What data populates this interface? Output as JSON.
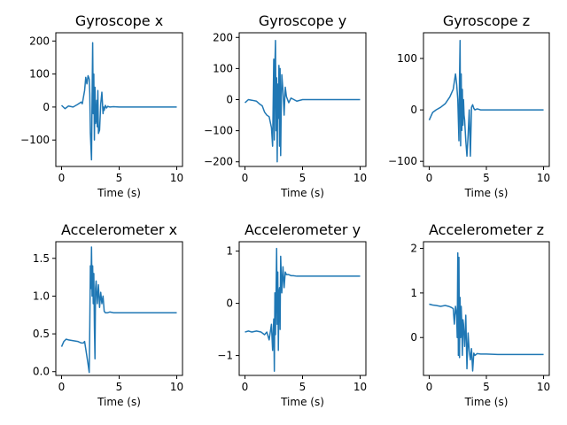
{
  "figure": {
    "background": "#ffffff",
    "line_color": "#1f77b4"
  },
  "chart_data": [
    {
      "type": "line",
      "title": "Gyroscope x",
      "xlabel": "Time (s)",
      "ylabel": "",
      "xlim": [
        -0.5,
        10.5
      ],
      "ylim": [
        -180,
        225
      ],
      "xticks": [
        0,
        5,
        10
      ],
      "yticks": [
        -100,
        0,
        100,
        200
      ],
      "series": [
        {
          "x": [
            0,
            0.3,
            0.6,
            1.0,
            1.4,
            1.7,
            1.8,
            2.0,
            2.1,
            2.2,
            2.3,
            2.4,
            2.45,
            2.5,
            2.6,
            2.65,
            2.7,
            2.75,
            2.8,
            2.85,
            2.9,
            2.95,
            3.0,
            3.05,
            3.1,
            3.15,
            3.2,
            3.3,
            3.4,
            3.5,
            3.6,
            3.65,
            3.7,
            3.8,
            3.9,
            4.0,
            4.2,
            4.5,
            5,
            6,
            7,
            8,
            9,
            10
          ],
          "y": [
            5,
            -5,
            3,
            0,
            8,
            15,
            10,
            50,
            90,
            70,
            95,
            85,
            40,
            -80,
            -160,
            30,
            195,
            -20,
            100,
            -100,
            60,
            -50,
            -40,
            20,
            -60,
            50,
            -80,
            -70,
            10,
            45,
            -20,
            0,
            -10,
            5,
            -3,
            2,
            0,
            1,
            0,
            0,
            0,
            0,
            0,
            0
          ]
        }
      ]
    },
    {
      "type": "line",
      "title": "Gyroscope y",
      "xlabel": "Time (s)",
      "ylabel": "",
      "xlim": [
        -0.5,
        10.5
      ],
      "ylim": [
        -215,
        215
      ],
      "xticks": [
        0,
        5,
        10
      ],
      "yticks": [
        -200,
        -100,
        0,
        100,
        200
      ],
      "series": [
        {
          "x": [
            0,
            0.3,
            0.6,
            1.0,
            1.3,
            1.5,
            1.7,
            1.9,
            2.1,
            2.3,
            2.4,
            2.5,
            2.55,
            2.6,
            2.65,
            2.7,
            2.75,
            2.8,
            2.85,
            2.9,
            2.95,
            3.0,
            3.05,
            3.1,
            3.15,
            3.2,
            3.3,
            3.4,
            3.5,
            3.6,
            3.8,
            4.0,
            4.5,
            5,
            6,
            7,
            8,
            9,
            10
          ],
          "y": [
            -10,
            0,
            -2,
            -5,
            -15,
            -20,
            -40,
            -50,
            -55,
            -90,
            -150,
            130,
            -130,
            110,
            190,
            -100,
            70,
            -200,
            50,
            -60,
            110,
            -150,
            100,
            -180,
            -20,
            80,
            30,
            -50,
            40,
            10,
            -10,
            5,
            -5,
            0,
            0,
            0,
            0,
            0,
            0
          ]
        }
      ]
    },
    {
      "type": "line",
      "title": "Gyroscope z",
      "xlabel": "Time (s)",
      "ylabel": "",
      "xlim": [
        -0.5,
        10.5
      ],
      "ylim": [
        -110,
        150
      ],
      "xticks": [
        0,
        5,
        10
      ],
      "yticks": [
        -100,
        0,
        100
      ],
      "series": [
        {
          "x": [
            0,
            0.3,
            0.6,
            1.0,
            1.4,
            1.8,
            2.1,
            2.3,
            2.4,
            2.5,
            2.6,
            2.65,
            2.7,
            2.75,
            2.8,
            2.85,
            2.9,
            2.95,
            3.0,
            3.05,
            3.1,
            3.2,
            3.3,
            3.4,
            3.5,
            3.6,
            3.7,
            3.8,
            3.9,
            4.0,
            4.2,
            4.5,
            5,
            6,
            7,
            8,
            9,
            10
          ],
          "y": [
            -20,
            -5,
            0,
            5,
            12,
            25,
            40,
            70,
            50,
            20,
            -60,
            60,
            135,
            -70,
            70,
            -40,
            40,
            -30,
            20,
            -10,
            -20,
            -60,
            -90,
            -50,
            0,
            -90,
            5,
            10,
            3,
            0,
            2,
            0,
            0,
            0,
            0,
            0,
            0,
            0
          ]
        }
      ]
    },
    {
      "type": "line",
      "title": "Accelerometer x",
      "xlabel": "Time (s)",
      "ylabel": "",
      "xlim": [
        -0.5,
        10.5
      ],
      "ylim": [
        -0.05,
        1.72
      ],
      "xticks": [
        0,
        5,
        10
      ],
      "yticks": [
        0.0,
        0.5,
        1.0,
        1.5
      ],
      "yticklabels": [
        "0.0",
        "0.5",
        "1.0",
        "1.5"
      ],
      "series": [
        {
          "x": [
            0,
            0.2,
            0.4,
            0.6,
            1.0,
            1.4,
            1.7,
            1.9,
            2.0,
            2.1,
            2.2,
            2.3,
            2.4,
            2.45,
            2.5,
            2.55,
            2.6,
            2.65,
            2.7,
            2.75,
            2.8,
            2.85,
            2.9,
            2.95,
            3.0,
            3.1,
            3.2,
            3.3,
            3.4,
            3.5,
            3.6,
            3.7,
            3.8,
            4.0,
            4.2,
            4.5,
            5,
            6,
            7,
            8,
            9,
            10
          ],
          "y": [
            0.33,
            0.4,
            0.43,
            0.42,
            0.41,
            0.4,
            0.38,
            0.38,
            0.4,
            0.3,
            0.2,
            0.1,
            -0.01,
            0.6,
            1.4,
            1.1,
            1.65,
            1.0,
            1.4,
            0.9,
            1.3,
            0.6,
            0.17,
            1.1,
            1.2,
            0.9,
            1.15,
            0.85,
            1.05,
            0.9,
            1.0,
            0.8,
            0.78,
            0.78,
            0.79,
            0.78,
            0.78,
            0.78,
            0.78,
            0.78,
            0.78,
            0.78
          ]
        }
      ]
    },
    {
      "type": "line",
      "title": "Accelerometer y",
      "xlabel": "Time (s)",
      "ylabel": "",
      "xlim": [
        -0.5,
        10.5
      ],
      "ylim": [
        -1.38,
        1.18
      ],
      "xticks": [
        0,
        5,
        10
      ],
      "yticks": [
        -1,
        0,
        1
      ],
      "series": [
        {
          "x": [
            0,
            0.3,
            0.6,
            1.0,
            1.4,
            1.7,
            1.9,
            2.1,
            2.3,
            2.4,
            2.5,
            2.55,
            2.6,
            2.65,
            2.7,
            2.75,
            2.8,
            2.85,
            2.9,
            2.95,
            3.0,
            3.05,
            3.1,
            3.2,
            3.3,
            3.4,
            3.5,
            3.6,
            3.8,
            4.0,
            4.2,
            4.5,
            5,
            6,
            7,
            8,
            9,
            10
          ],
          "y": [
            -0.55,
            -0.53,
            -0.55,
            -0.53,
            -0.55,
            -0.6,
            -0.55,
            -0.7,
            -0.4,
            -0.9,
            -0.3,
            -1.3,
            0.2,
            -0.6,
            0.2,
            1.05,
            -0.4,
            0.6,
            -0.9,
            0.2,
            0.3,
            -0.5,
            0.9,
            0.2,
            0.7,
            0.3,
            0.6,
            0.55,
            0.55,
            0.53,
            0.53,
            0.52,
            0.52,
            0.52,
            0.52,
            0.52,
            0.52,
            0.52
          ]
        }
      ]
    },
    {
      "type": "line",
      "title": "Accelerometer z",
      "xlabel": "Time (s)",
      "ylabel": "",
      "xlim": [
        -0.5,
        10.5
      ],
      "ylim": [
        -0.85,
        2.15
      ],
      "xticks": [
        0,
        5,
        10
      ],
      "yticks": [
        0,
        1,
        2
      ],
      "series": [
        {
          "x": [
            0,
            0.3,
            0.6,
            1.0,
            1.4,
            1.7,
            1.9,
            2.1,
            2.2,
            2.3,
            2.4,
            2.45,
            2.5,
            2.55,
            2.6,
            2.65,
            2.7,
            2.75,
            2.8,
            2.85,
            2.9,
            2.95,
            3.0,
            3.1,
            3.2,
            3.3,
            3.4,
            3.5,
            3.6,
            3.7,
            3.8,
            3.9,
            4.0,
            4.2,
            4.5,
            5,
            6,
            7,
            8,
            9,
            10
          ],
          "y": [
            0.75,
            0.73,
            0.72,
            0.7,
            0.72,
            0.7,
            0.68,
            0.65,
            0.3,
            0.7,
            0.5,
            0.0,
            1.9,
            -0.4,
            1.8,
            -0.45,
            0.9,
            0.0,
            0.7,
            0.3,
            -0.4,
            0.4,
            0.3,
            -0.2,
            0.5,
            -0.7,
            0.1,
            -0.3,
            -0.5,
            -0.25,
            -0.75,
            -0.35,
            -0.4,
            -0.36,
            -0.37,
            -0.37,
            -0.38,
            -0.38,
            -0.38,
            -0.38,
            -0.38
          ]
        }
      ]
    }
  ]
}
